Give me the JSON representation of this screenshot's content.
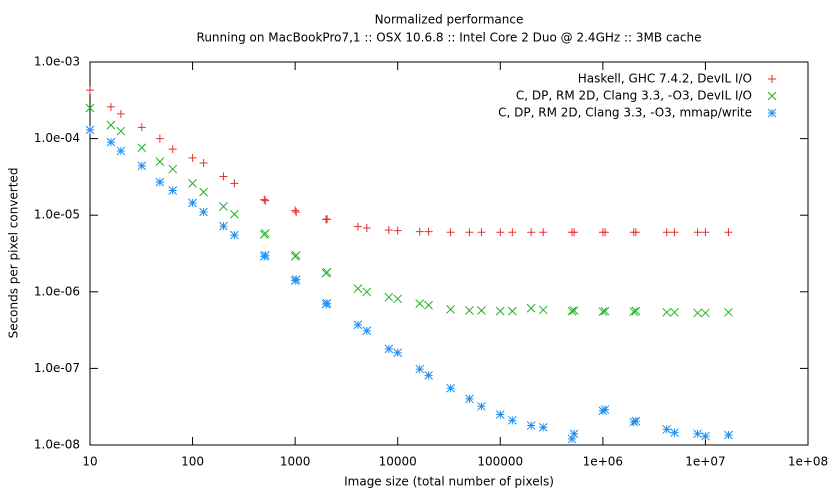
{
  "chart_data": {
    "type": "scatter",
    "title": "Normalized performance",
    "subtitle": "Running on MacBookPro7,1 :: OSX 10.6.8 :: Intel Core 2 Duo @ 2.4GHz :: 3MB cache",
    "x_label": "Image size (total number of pixels)",
    "y_label": "Seconds per pixel converted",
    "x_log": true,
    "y_log": true,
    "xlim": [
      10,
      100000000
    ],
    "ylim": [
      1e-08,
      0.001
    ],
    "xticks": [
      10,
      100,
      1000,
      10000,
      100000,
      {
        "value": 1000000,
        "label": "1e+06"
      },
      {
        "value": 10000000,
        "label": "1e+07"
      },
      {
        "value": 100000000,
        "label": "1e+08"
      }
    ],
    "yticks": [
      {
        "value": 1e-08,
        "label": "1.0e-08"
      },
      {
        "value": 1e-07,
        "label": "1.0e-07"
      },
      {
        "value": 1e-06,
        "label": "1.0e-06"
      },
      {
        "value": 1e-05,
        "label": "1.0e-05"
      },
      {
        "value": 0.0001,
        "label": "1.0e-04"
      },
      {
        "value": 0.001,
        "label": "1.0e-03"
      }
    ],
    "legend": "top-right",
    "series": [
      {
        "name": "Haskell, GHC 7.4.2, DevIL I/O",
        "color": "#e8302f",
        "marker": "plus",
        "x": [
          10,
          16,
          20,
          32,
          48,
          64,
          100,
          128,
          200,
          256,
          500,
          512,
          1000,
          1024,
          2000,
          2048,
          4096,
          5000,
          8192,
          10000,
          16384,
          20000,
          32768,
          50000,
          65536,
          100000,
          131072,
          200000,
          262144,
          500000,
          524288,
          1000000,
          1048576,
          2000000,
          2097152,
          4194304,
          5000000,
          8388608,
          10000000,
          16777216
        ],
        "values": [
          0.00043,
          0.00026,
          0.00021,
          0.00014,
          0.0001,
          7.3e-05,
          5.6e-05,
          4.8e-05,
          3.2e-05,
          2.6e-05,
          1.6e-05,
          1.55e-05,
          1.15e-05,
          1.1e-05,
          8.8e-06,
          8.9e-06,
          7.1e-06,
          6.8e-06,
          6.4e-06,
          6.3e-06,
          6.1e-06,
          6.1e-06,
          6e-06,
          6e-06,
          6e-06,
          6e-06,
          6e-06,
          6e-06,
          6e-06,
          6e-06,
          6e-06,
          6e-06,
          6e-06,
          6e-06,
          6e-06,
          6e-06,
          6e-06,
          6e-06,
          6e-06,
          6e-06
        ]
      },
      {
        "name": "C, DP, RM 2D, Clang 3.3, -O3, DevIL I/O",
        "color": "#1fb21f",
        "marker": "cross",
        "x": [
          10,
          16,
          20,
          32,
          48,
          64,
          100,
          128,
          200,
          256,
          500,
          512,
          1000,
          1024,
          2000,
          2048,
          4096,
          5000,
          8192,
          10000,
          16384,
          20000,
          32768,
          50000,
          65536,
          100000,
          131072,
          200000,
          262144,
          500000,
          524288,
          1000000,
          1048576,
          2000000,
          2097152,
          4194304,
          5000000,
          8388608,
          10000000,
          16777216
        ],
        "values": [
          0.00025,
          0.00015,
          0.000125,
          7.6e-05,
          5e-05,
          4e-05,
          2.6e-05,
          2e-05,
          1.3e-05,
          1.03e-05,
          5.6e-06,
          5.8e-06,
          2.9e-06,
          3e-06,
          1.75e-06,
          1.8e-06,
          1.1e-06,
          1e-06,
          8.5e-07,
          8.1e-07,
          7e-07,
          6.7e-07,
          5.9e-07,
          5.7e-07,
          5.7e-07,
          5.6e-07,
          5.6e-07,
          6.1e-07,
          5.8e-07,
          5.6e-07,
          5.7e-07,
          5.5e-07,
          5.6e-07,
          5.5e-07,
          5.6e-07,
          5.4e-07,
          5.4e-07,
          5.3e-07,
          5.3e-07,
          5.4e-07
        ]
      },
      {
        "name": "C, DP, RM 2D, Clang 3.3, -O3, mmap/write",
        "color": "#1f8fef",
        "marker": "star",
        "x": [
          10,
          16,
          20,
          32,
          48,
          64,
          100,
          128,
          200,
          256,
          500,
          512,
          1000,
          1024,
          2000,
          2048,
          4096,
          5000,
          8192,
          10000,
          16384,
          20000,
          32768,
          50000,
          65536,
          100000,
          131072,
          200000,
          262144,
          500000,
          524288,
          1000000,
          1048576,
          2000000,
          2097152,
          4194304,
          5000000,
          8388608,
          10000000,
          16777216
        ],
        "values": [
          0.00013,
          9e-05,
          6.9e-05,
          4.4e-05,
          2.7e-05,
          2.1e-05,
          1.45e-05,
          1.1e-05,
          7.2e-06,
          5.5e-06,
          2.9e-06,
          3e-06,
          1.4e-06,
          1.45e-06,
          6.9e-07,
          7.1e-07,
          3.7e-07,
          3.1e-07,
          1.8e-07,
          1.6e-07,
          9.8e-08,
          8.1e-08,
          5.5e-08,
          4e-08,
          3.2e-08,
          2.5e-08,
          2.1e-08,
          1.8e-08,
          1.7e-08,
          1.2e-08,
          1.4e-08,
          2.8e-08,
          2.9e-08,
          2e-08,
          2.05e-08,
          1.6e-08,
          1.45e-08,
          1.4e-08,
          1.3e-08,
          1.35e-08
        ]
      }
    ]
  }
}
